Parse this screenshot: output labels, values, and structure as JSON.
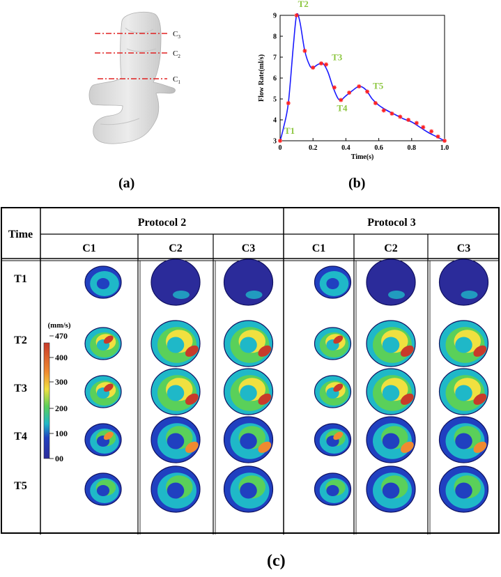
{
  "panel_labels": {
    "a": "(a)",
    "b": "(b)",
    "c": "(c)"
  },
  "geometry_sections": [
    {
      "label": "C",
      "sub": "3"
    },
    {
      "label": "C",
      "sub": "2"
    },
    {
      "label": "C",
      "sub": "1"
    }
  ],
  "chart_data": {
    "type": "line",
    "xlabel": "Time(s)",
    "ylabel": "Flow Rate(ml/s)",
    "xlim": [
      0,
      1.0
    ],
    "ylim": [
      3,
      9
    ],
    "xticks": [
      "0",
      "0.2",
      "0.4",
      "0.6",
      "0.8",
      "1.0"
    ],
    "yticks": [
      "3",
      "4",
      "5",
      "6",
      "7",
      "8",
      "9"
    ],
    "curve": {
      "x": [
        0,
        0.02,
        0.05,
        0.08,
        0.1,
        0.12,
        0.15,
        0.18,
        0.2,
        0.23,
        0.26,
        0.29,
        0.32,
        0.35,
        0.37,
        0.4,
        0.44,
        0.48,
        0.52,
        0.56,
        0.6,
        0.65,
        0.7,
        0.75,
        0.8,
        0.85,
        0.9,
        0.95,
        1.0
      ],
      "y": [
        3.0,
        3.6,
        4.8,
        7.5,
        9.0,
        8.7,
        7.3,
        6.6,
        6.5,
        6.65,
        6.7,
        6.3,
        5.6,
        5.05,
        4.95,
        5.15,
        5.4,
        5.6,
        5.45,
        5.0,
        4.7,
        4.45,
        4.25,
        4.05,
        3.9,
        3.65,
        3.4,
        3.2,
        3.0
      ]
    },
    "markers": {
      "x": [
        0,
        0.05,
        0.1,
        0.15,
        0.2,
        0.25,
        0.28,
        0.33,
        0.37,
        0.42,
        0.48,
        0.53,
        0.58,
        0.63,
        0.68,
        0.73,
        0.78,
        0.83,
        0.87,
        0.92,
        0.96,
        1.0
      ],
      "y": [
        3.0,
        4.8,
        9.0,
        7.3,
        6.5,
        6.7,
        6.65,
        5.55,
        4.95,
        5.3,
        5.6,
        5.35,
        4.8,
        4.45,
        4.3,
        4.15,
        4.0,
        3.85,
        3.65,
        3.45,
        3.2,
        3.0
      ]
    },
    "annotations": [
      {
        "text": "T1",
        "x": 0.0,
        "y": 3.0
      },
      {
        "text": "T2",
        "x": 0.1,
        "y": 9.0
      },
      {
        "text": "T3",
        "x": 0.28,
        "y": 6.65
      },
      {
        "text": "T4",
        "x": 0.37,
        "y": 4.95
      },
      {
        "text": "T5",
        "x": 0.53,
        "y": 5.35
      }
    ],
    "line_color": "#1a1aff",
    "marker_color": "#ff2020",
    "annotation_color": "#8cc63f"
  },
  "table": {
    "time_header": "Time",
    "protocols": [
      "Protocol 2",
      "Protocol 3"
    ],
    "columns": [
      "C1",
      "C2",
      "C3",
      "C1",
      "C2",
      "C3"
    ],
    "rows": [
      "T1",
      "T2",
      "T3",
      "T4",
      "T5"
    ],
    "colorbar": {
      "unit": "(mm/s)",
      "ticks": [
        "470",
        "400",
        "300",
        "200",
        "100",
        "00"
      ]
    }
  },
  "colors": {
    "blue_dark": "#2b2b9a",
    "blue": "#2040c0",
    "cyan": "#1fb8c8",
    "green": "#5ad05a",
    "yellow": "#f0e040",
    "orange": "#f08a30",
    "red": "#c83a2a"
  }
}
